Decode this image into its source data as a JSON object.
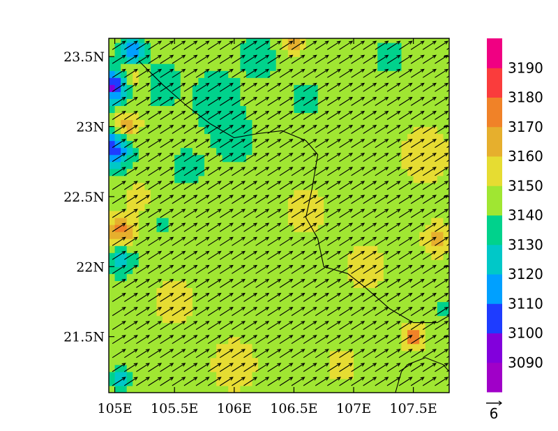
{
  "chart_data": {
    "type": "heatmap",
    "title": "",
    "xlabel": "",
    "ylabel": "",
    "x_range": [
      104.95,
      107.8
    ],
    "y_range": [
      21.1,
      23.63
    ],
    "x_ticks": [
      {
        "value": 105.0,
        "label": "105E"
      },
      {
        "value": 105.5,
        "label": "105.5E"
      },
      {
        "value": 106.0,
        "label": "106E"
      },
      {
        "value": 106.5,
        "label": "106.5E"
      },
      {
        "value": 107.0,
        "label": "107E"
      },
      {
        "value": 107.5,
        "label": "107.5E"
      }
    ],
    "y_ticks": [
      {
        "value": 21.5,
        "label": "21.5N"
      },
      {
        "value": 22.0,
        "label": "22N"
      },
      {
        "value": 22.5,
        "label": "22.5N"
      },
      {
        "value": 23.0,
        "label": "23N"
      },
      {
        "value": 23.5,
        "label": "23.5N"
      }
    ],
    "colorbar": {
      "labels": [
        3090,
        3100,
        3110,
        3120,
        3130,
        3140,
        3150,
        3160,
        3170,
        3180,
        3190
      ],
      "colors": [
        "#a000c8",
        "#8200dc",
        "#1e3cff",
        "#00a0ff",
        "#00c8c8",
        "#00d28c",
        "#a0e632",
        "#e6dc32",
        "#e6af2d",
        "#f08228",
        "#fa3c3c",
        "#f00082"
      ]
    },
    "background_value": 3145,
    "field_features": [
      {
        "lon": 105.0,
        "lat": 23.3,
        "value": 3090,
        "radius": 0.12
      },
      {
        "lon": 105.0,
        "lat": 22.85,
        "value": 3105,
        "radius": 0.14
      },
      {
        "lon": 105.15,
        "lat": 23.55,
        "value": 3105,
        "radius": 0.1
      },
      {
        "lon": 105.1,
        "lat": 23.0,
        "value": 3175,
        "radius": 0.1
      },
      {
        "lon": 105.1,
        "lat": 23.35,
        "value": 3165,
        "radius": 0.12
      },
      {
        "lon": 105.05,
        "lat": 22.25,
        "value": 3175,
        "radius": 0.11
      },
      {
        "lon": 105.05,
        "lat": 22.05,
        "value": 3125,
        "radius": 0.12
      },
      {
        "lon": 105.05,
        "lat": 21.2,
        "value": 3125,
        "radius": 0.08
      },
      {
        "lon": 105.4,
        "lat": 23.3,
        "value": 3132,
        "radius": 0.15
      },
      {
        "lon": 105.85,
        "lat": 23.2,
        "value": 3132,
        "radius": 0.2
      },
      {
        "lon": 105.6,
        "lat": 22.7,
        "value": 3135,
        "radius": 0.15
      },
      {
        "lon": 106.0,
        "lat": 22.9,
        "value": 3135,
        "radius": 0.2
      },
      {
        "lon": 106.2,
        "lat": 23.5,
        "value": 3132,
        "radius": 0.15
      },
      {
        "lon": 106.6,
        "lat": 23.2,
        "value": 3135,
        "radius": 0.15
      },
      {
        "lon": 107.3,
        "lat": 23.5,
        "value": 3135,
        "radius": 0.15
      },
      {
        "lon": 105.4,
        "lat": 22.3,
        "value": 3130,
        "radius": 0.06
      },
      {
        "lon": 106.5,
        "lat": 23.6,
        "value": 3165,
        "radius": 0.09
      },
      {
        "lon": 107.5,
        "lat": 21.5,
        "value": 3175,
        "radius": 0.09
      },
      {
        "lon": 107.7,
        "lat": 22.2,
        "value": 3163,
        "radius": 0.12
      },
      {
        "lon": 107.6,
        "lat": 22.8,
        "value": 3158,
        "radius": 0.2
      },
      {
        "lon": 106.6,
        "lat": 22.4,
        "value": 3155,
        "radius": 0.2
      },
      {
        "lon": 107.1,
        "lat": 22.0,
        "value": 3155,
        "radius": 0.18
      },
      {
        "lon": 106.0,
        "lat": 21.3,
        "value": 3155,
        "radius": 0.22
      },
      {
        "lon": 105.5,
        "lat": 21.75,
        "value": 3155,
        "radius": 0.18
      },
      {
        "lon": 106.9,
        "lat": 21.3,
        "value": 3155,
        "radius": 0.15
      },
      {
        "lon": 105.2,
        "lat": 22.5,
        "value": 3155,
        "radius": 0.12
      },
      {
        "lon": 107.75,
        "lat": 21.7,
        "value": 3130,
        "radius": 0.06
      }
    ],
    "wind": {
      "u": 5.0,
      "v": 3.2,
      "grid_lon_start": 104.98,
      "grid_lon_step": 0.1,
      "grid_lat_start": 21.15,
      "grid_lat_step": 0.1,
      "reference_vector_label": "6"
    },
    "borders": [
      [
        [
          105.2,
          23.47
        ],
        [
          105.4,
          23.3
        ],
        [
          105.6,
          23.15
        ],
        [
          105.8,
          23.02
        ],
        [
          106.0,
          22.92
        ],
        [
          106.2,
          22.95
        ],
        [
          106.4,
          22.97
        ],
        [
          106.6,
          22.9
        ],
        [
          106.7,
          22.8
        ],
        [
          106.65,
          22.55
        ],
        [
          106.6,
          22.35
        ],
        [
          106.7,
          22.2
        ],
        [
          106.75,
          22.0
        ],
        [
          106.95,
          21.95
        ],
        [
          107.1,
          21.85
        ],
        [
          107.3,
          21.7
        ],
        [
          107.5,
          21.6
        ],
        [
          107.7,
          21.6
        ],
        [
          107.8,
          21.65
        ]
      ],
      [
        [
          107.35,
          21.1
        ],
        [
          107.4,
          21.25
        ],
        [
          107.45,
          21.3
        ],
        [
          107.6,
          21.35
        ],
        [
          107.75,
          21.3
        ],
        [
          107.8,
          21.25
        ]
      ]
    ]
  }
}
